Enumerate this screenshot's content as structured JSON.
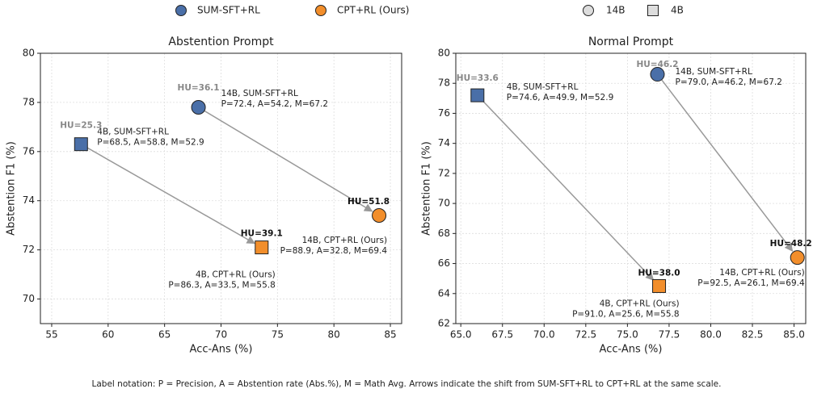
{
  "legend_markers": [
    {
      "label": "14B",
      "marker": "circle"
    },
    {
      "label": "4B",
      "marker": "square"
    }
  ],
  "footnote": "Label notation: P = Precision, A = Abstention rate (Abs.%), M = Math Avg.  Arrows indicate the shift from SUM-SFT+RL to CPT+RL at the same scale.",
  "chart_data": [
    {
      "type": "scatter",
      "title": "Abstention Prompt",
      "x_label": "Acc-Ans (%)",
      "y_label": "Abstention F1 (%)",
      "xlim": [
        54,
        86
      ],
      "ylim": [
        69,
        80
      ],
      "xticks": [
        55,
        60,
        65,
        70,
        75,
        80,
        85
      ],
      "yticks": [
        70,
        72,
        74,
        76,
        78,
        80
      ],
      "grid": true,
      "series": [
        {
          "name": "SUM-SFT+RL",
          "color": "#4a6fa8",
          "model": [
            "14B",
            "4B"
          ],
          "x": [
            68,
            57.6
          ],
          "values": [
            77.8,
            76.3
          ],
          "hu_labels": [
            "HU=36.1",
            "HU=25.3"
          ],
          "details": [
            [
              "14B, SUM-SFT+RL",
              "P=72.4, A=54.2, M=67.2"
            ],
            [
              "4B, SUM-SFT+RL",
              "P=68.5, A=58.8, M=52.9"
            ]
          ]
        },
        {
          "name": "CPT+RL (Ours)",
          "color": "#f28e2b",
          "model": [
            "14B",
            "4B"
          ],
          "x": [
            84,
            73.6
          ],
          "values": [
            73.4,
            72.1
          ],
          "hu_labels": [
            "HU=51.8",
            "HU=39.1"
          ],
          "details": [
            [
              "14B, CPT+RL (Ours)",
              "P=88.9, A=32.8, M=69.4"
            ],
            [
              "4B, CPT+RL (Ours)",
              "P=86.3, A=33.5, M=55.8"
            ]
          ]
        }
      ]
    },
    {
      "type": "scatter",
      "title": "Normal Prompt",
      "x_label": "Acc-Ans (%)",
      "y_label": "Abstention F1 (%)",
      "xlim": [
        64.7,
        85.7
      ],
      "ylim": [
        62,
        80
      ],
      "xticks": [
        {
          "value": 65,
          "label": "65.0"
        },
        {
          "value": 67.5,
          "label": "67.5"
        },
        {
          "value": 70,
          "label": "70.0"
        },
        {
          "value": 72.5,
          "label": "72.5"
        },
        {
          "value": 75,
          "label": "75.0"
        },
        {
          "value": 77.5,
          "label": "77.5"
        },
        {
          "value": 80,
          "label": "80.0"
        },
        {
          "value": 82.5,
          "label": "82.5"
        },
        {
          "value": 85,
          "label": "85.0"
        }
      ],
      "yticks": [
        62,
        64,
        66,
        68,
        70,
        72,
        74,
        76,
        78,
        80
      ],
      "grid": true,
      "series": [
        {
          "name": "SUM-SFT+RL",
          "color": "#4a6fa8",
          "model": [
            "14B",
            "4B"
          ],
          "x": [
            76.8,
            66
          ],
          "values": [
            78.6,
            77.2
          ],
          "hu_labels": [
            "HU=46.2",
            "HU=33.6"
          ],
          "details": [
            [
              "14B, SUM-SFT+RL",
              "P=79.0, A=46.2, M=67.2"
            ],
            [
              "4B, SUM-SFT+RL",
              "P=74.6, A=49.9, M=52.9"
            ]
          ]
        },
        {
          "name": "CPT+RL (Ours)",
          "color": "#f28e2b",
          "model": [
            "14B",
            "4B"
          ],
          "x": [
            85.2,
            76.9
          ],
          "values": [
            66.4,
            64.5
          ],
          "hu_labels": [
            "HU=48.2",
            "HU=38.0"
          ],
          "details": [
            [
              "14B, CPT+RL (Ours)",
              "P=92.5, A=26.1, M=69.4"
            ],
            [
              "4B, CPT+RL (Ours)",
              "P=91.0, A=25.6, M=55.8"
            ]
          ]
        }
      ]
    }
  ]
}
